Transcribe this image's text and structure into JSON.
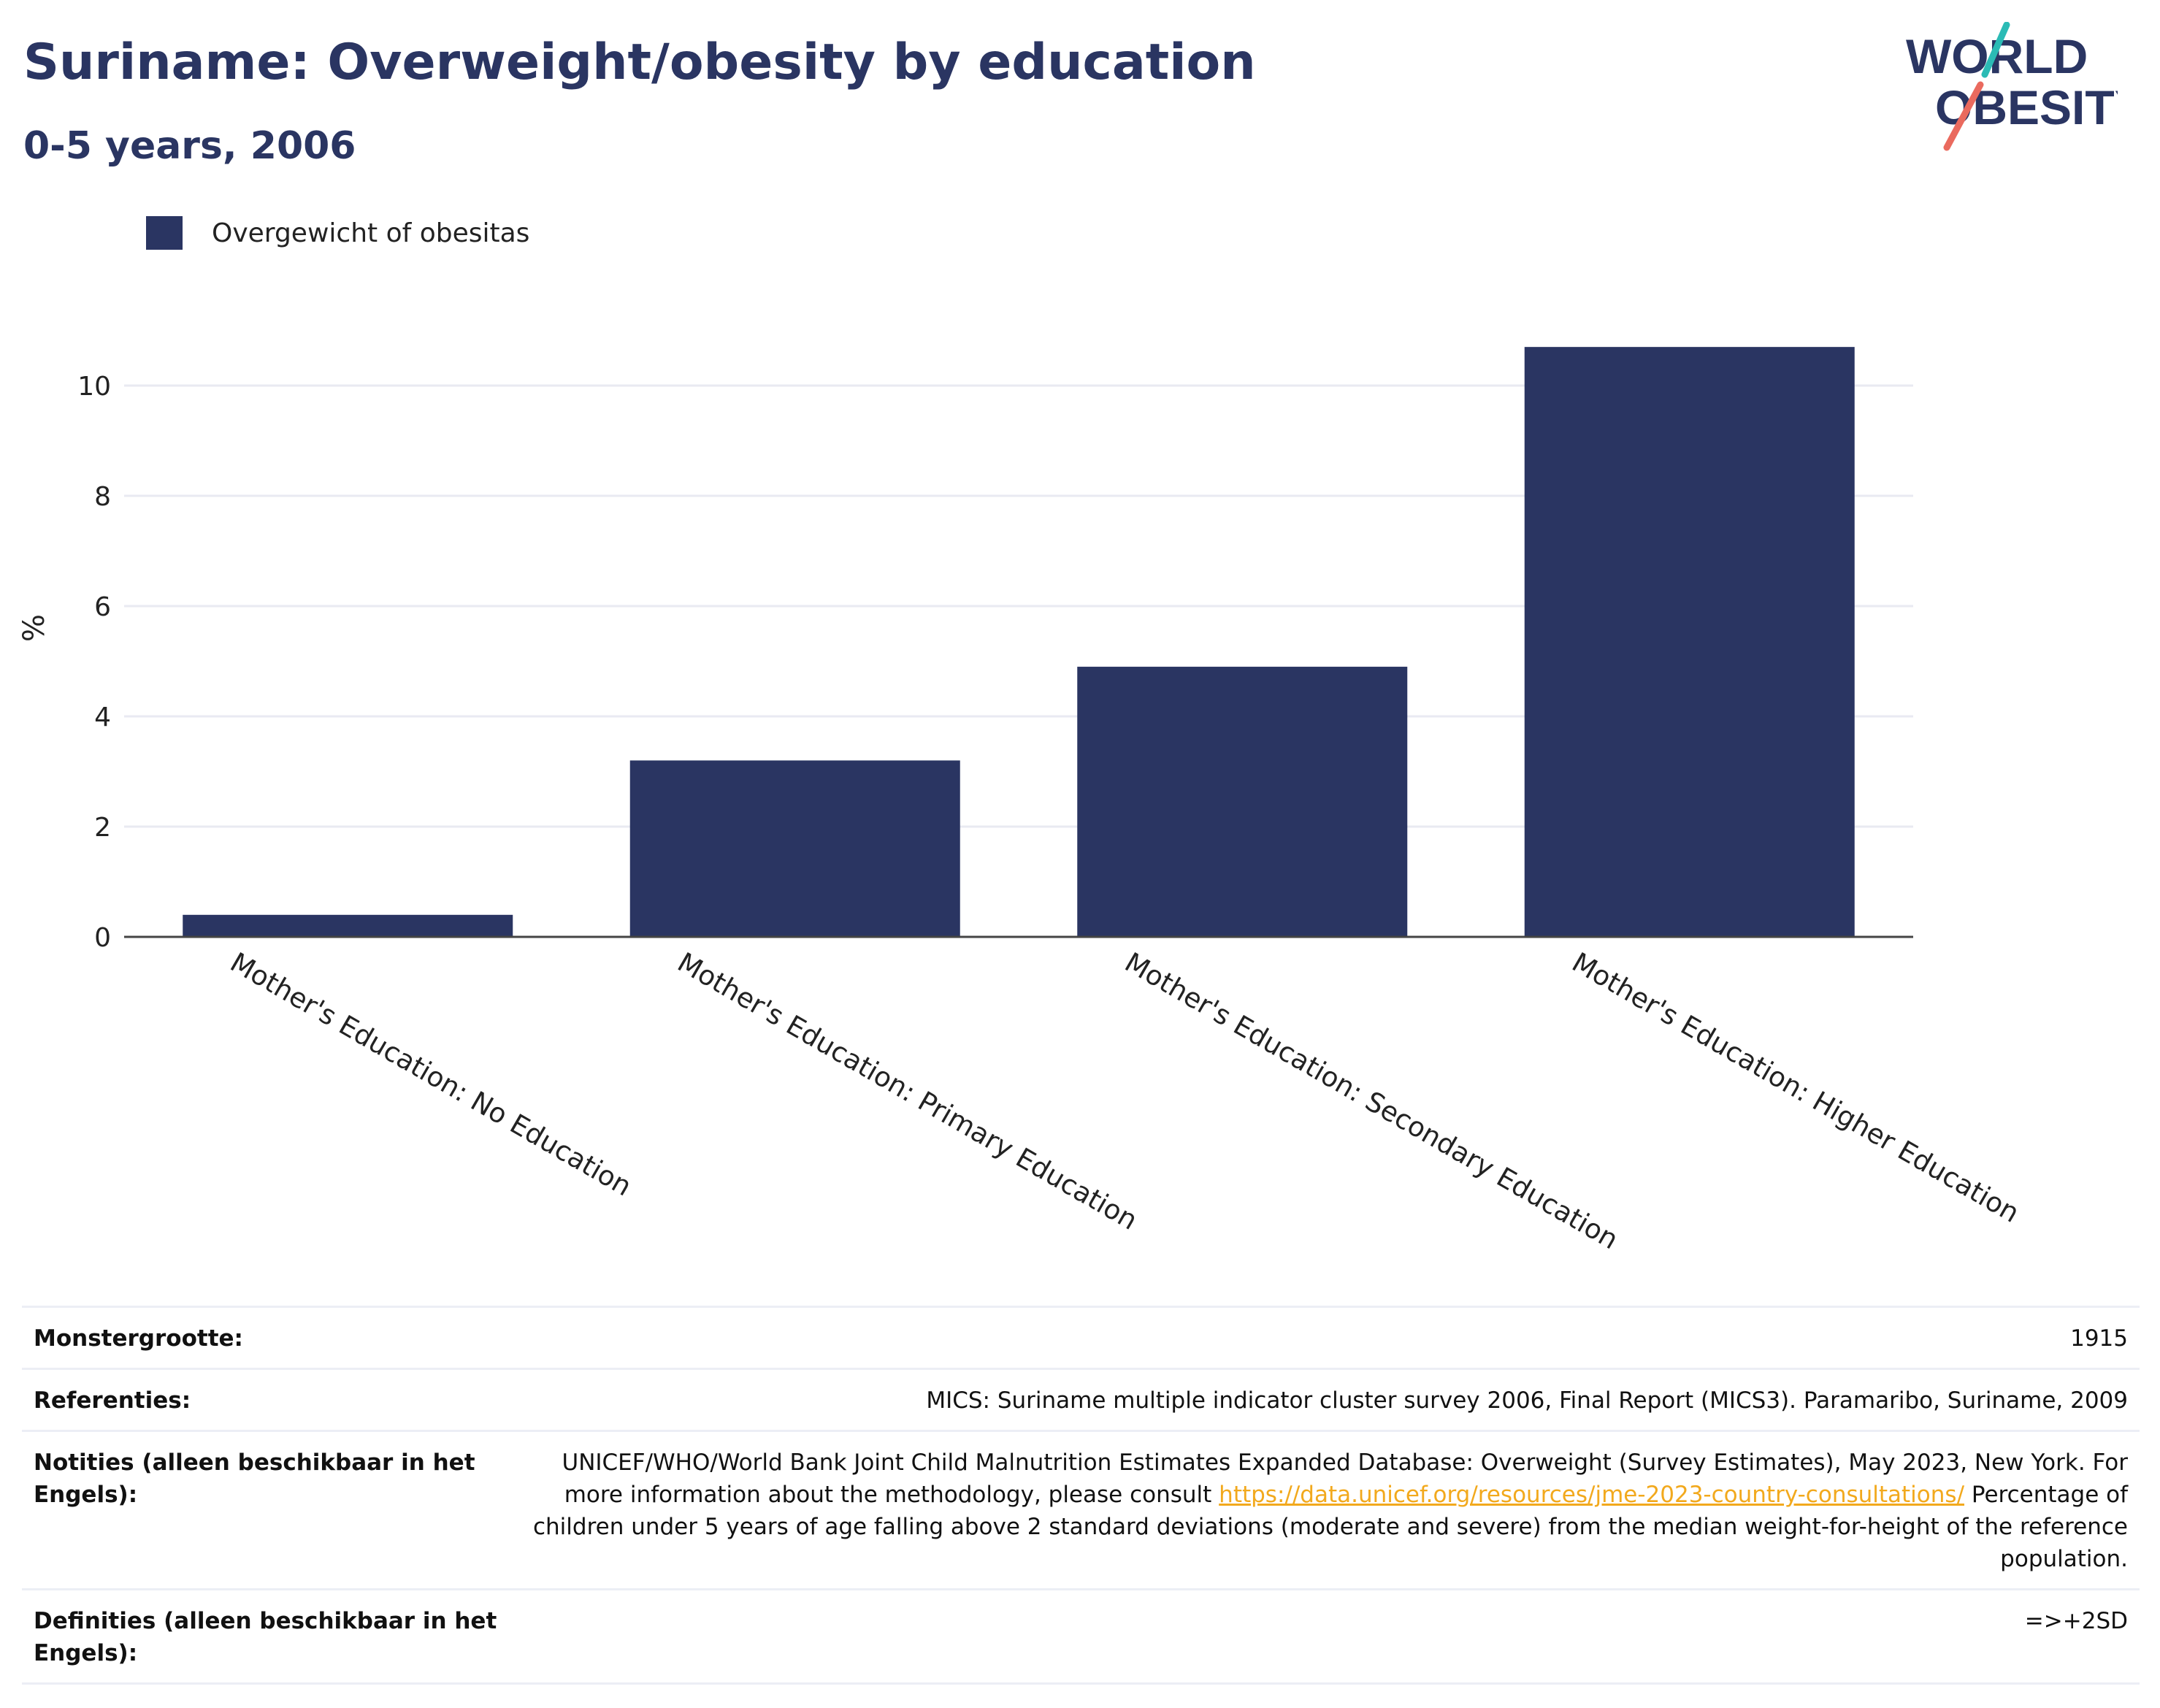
{
  "header": {
    "title": "Suriname: Overweight/obesity by education",
    "subtitle": "0-5 years, 2006",
    "logo_line1": "WORLD",
    "logo_line2": "OBESITY"
  },
  "legend": {
    "label": "Overgewicht of obesitas",
    "color": "#2a3562"
  },
  "chart_data": {
    "type": "bar",
    "categories": [
      "Mother's Education: No Education",
      "Mother's Education: Primary Education",
      "Mother's Education: Secondary Education",
      "Mother's Education: Higher Education"
    ],
    "series": [
      {
        "name": "Overgewicht of obesitas",
        "values": [
          0.4,
          3.2,
          4.9,
          10.7
        ],
        "color": "#2a3562"
      }
    ],
    "ylabel": "%",
    "xlabel": "",
    "ylim": [
      0,
      11
    ],
    "yticks": [
      0,
      2,
      4,
      6,
      8,
      10
    ],
    "grid": true
  },
  "footer": {
    "sample_label": "Monstergrootte:",
    "sample_value": "1915",
    "refs_label": "Referenties:",
    "refs_value": "MICS: Suriname multiple indicator cluster survey 2006, Final Report (MICS3). Paramaribo, Suriname, 2009",
    "notes_label": "Notities (alleen beschikbaar in het Engels):",
    "notes_text1": "UNICEF/WHO/World Bank Joint Child Malnutrition Estimates Expanded Database: Overweight (Survey Estimates), May 2023, New York. For more information about the methodology, please consult ",
    "notes_link": "https://data.unicef.org/resources/jme-2023-country-consultations/",
    "notes_text2": "Percentage of children under 5 years of age falling above 2 standard deviations (moderate and severe) from the median weight-for-height of the reference population.",
    "defs_label": "Definities (alleen beschikbaar in het Engels):",
    "defs_value": "=>+2SD"
  }
}
